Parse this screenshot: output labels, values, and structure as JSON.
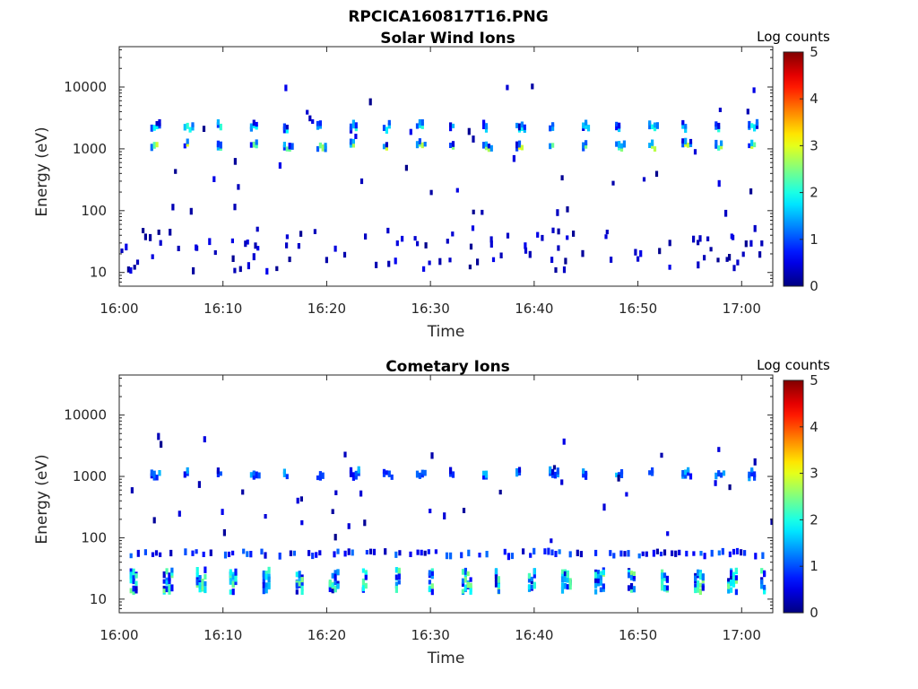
{
  "figure": {
    "title": "RPCICA160817T16.PNG"
  },
  "chart_data": [
    {
      "type": "heatmap",
      "title": "Solar Wind Ions",
      "xlabel": "Time",
      "ylabel": "Energy (eV)",
      "x_ticks": [
        "16:00",
        "16:10",
        "16:20",
        "16:30",
        "16:40",
        "16:50",
        "17:00"
      ],
      "x_range": [
        "16:00",
        "17:03"
      ],
      "y_ticks": [
        "10",
        "100",
        "1000",
        "10000"
      ],
      "y_range": [
        6,
        45000
      ],
      "y_scale": "log",
      "colorbar": {
        "label": "Log counts",
        "ticks": [
          "0",
          "1",
          "2",
          "3",
          "4",
          "5"
        ],
        "range": [
          0,
          5
        ],
        "colormap": "jet"
      },
      "features": [
        {
          "description": "periodic bursts",
          "energy_eV": 1100,
          "period_min": 3.2,
          "first_time": "16:03",
          "peak_log_counts": 3
        },
        {
          "description": "periodic bursts",
          "energy_eV": 2200,
          "period_min": 3.2,
          "first_time": "16:03",
          "peak_log_counts": 2
        },
        {
          "description": "scattered low-energy counts",
          "energy_eV_range": [
            10,
            55
          ],
          "peak_log_counts": 1
        },
        {
          "description": "sparse noise",
          "energy_eV_range": [
            60,
            12000
          ],
          "peak_log_counts": 1
        }
      ]
    },
    {
      "type": "heatmap",
      "title": "Cometary Ions",
      "xlabel": "Time",
      "ylabel": "Energy (eV)",
      "x_ticks": [
        "16:00",
        "16:10",
        "16:20",
        "16:30",
        "16:40",
        "16:50",
        "17:00"
      ],
      "x_range": [
        "16:00",
        "17:03"
      ],
      "y_ticks": [
        "10",
        "100",
        "1000",
        "10000"
      ],
      "y_range": [
        6,
        45000
      ],
      "y_scale": "log",
      "colorbar": {
        "label": "Log counts",
        "ticks": [
          "0",
          "1",
          "2",
          "3",
          "4",
          "5"
        ],
        "range": [
          0,
          5
        ],
        "colormap": "jet"
      },
      "features": [
        {
          "description": "periodic bursts",
          "energy_eV_range": [
            13,
            30
          ],
          "period_min": 3.2,
          "first_time": "16:01",
          "peak_log_counts": 2
        },
        {
          "description": "periodic bursts",
          "energy_eV": 1050,
          "period_min": 3.2,
          "first_time": "16:03",
          "peak_log_counts": 1
        },
        {
          "description": "band",
          "energy_eV": 55,
          "peak_log_counts": 1
        },
        {
          "description": "sparse noise",
          "energy_eV_range": [
            80,
            5000
          ],
          "peak_log_counts": 1
        }
      ]
    }
  ]
}
